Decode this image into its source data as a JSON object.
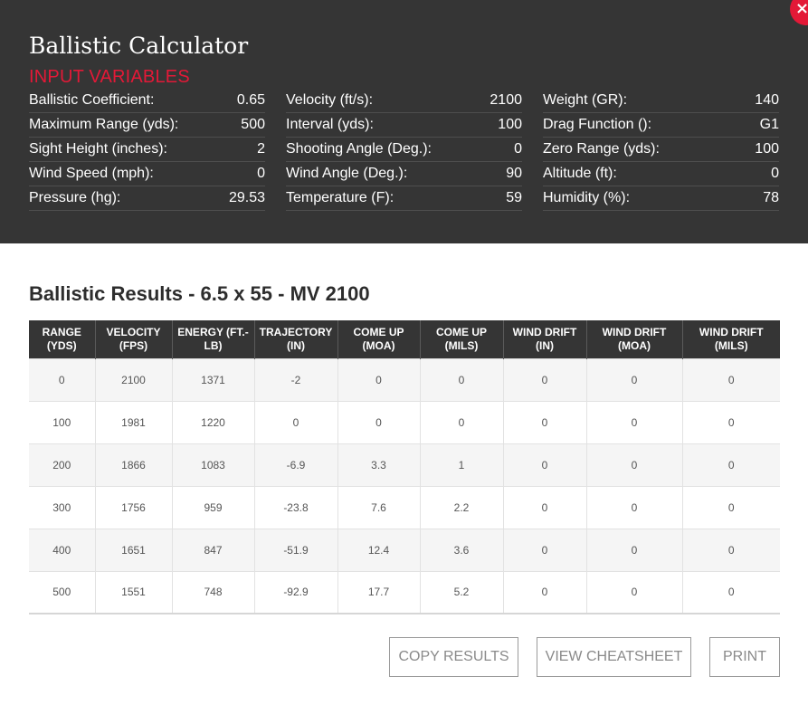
{
  "app": {
    "title": "Ballistic Calculator",
    "close_symbol": "×"
  },
  "inputs": {
    "section_label": "INPUT VARIABLES",
    "columns": [
      [
        {
          "label": "Ballistic Coefficient:",
          "value": "0.65"
        },
        {
          "label": "Maximum Range (yds):",
          "value": "500"
        },
        {
          "label": "Sight Height (inches):",
          "value": "2"
        },
        {
          "label": "Wind Speed (mph):",
          "value": "0"
        },
        {
          "label": "Pressure (hg):",
          "value": "29.53"
        }
      ],
      [
        {
          "label": "Velocity (ft/s):",
          "value": "2100"
        },
        {
          "label": "Interval (yds):",
          "value": "100"
        },
        {
          "label": "Shooting Angle (Deg.):",
          "value": "0"
        },
        {
          "label": "Wind Angle (Deg.):",
          "value": "90"
        },
        {
          "label": "Temperature (F):",
          "value": "59"
        }
      ],
      [
        {
          "label": "Weight (GR):",
          "value": "140"
        },
        {
          "label": "Drag Function ():",
          "value": "G1"
        },
        {
          "label": "Zero Range (yds):",
          "value": "100"
        },
        {
          "label": "Altitude (ft):",
          "value": "0"
        },
        {
          "label": "Humidity (%):",
          "value": "78"
        }
      ]
    ]
  },
  "results": {
    "title": "Ballistic Results - 6.5 x 55 - MV 2100",
    "headers": [
      [
        "RANGE",
        "(YDS)"
      ],
      [
        "VELOCITY",
        "(FPS)"
      ],
      [
        "ENERGY (FT.-",
        "LB)"
      ],
      [
        "TRAJECTORY",
        "(IN)"
      ],
      [
        "COME UP",
        "(MOA)"
      ],
      [
        "COME UP",
        "(MILS)"
      ],
      [
        "WIND DRIFT",
        "(IN)"
      ],
      [
        "WIND DRIFT",
        "(MOA)"
      ],
      [
        "WIND DRIFT",
        "(MILS)"
      ]
    ],
    "rows": [
      [
        "0",
        "2100",
        "1371",
        "-2",
        "0",
        "0",
        "0",
        "0",
        "0"
      ],
      [
        "100",
        "1981",
        "1220",
        "0",
        "0",
        "0",
        "0",
        "0",
        "0"
      ],
      [
        "200",
        "1866",
        "1083",
        "-6.9",
        "3.3",
        "1",
        "0",
        "0",
        "0"
      ],
      [
        "300",
        "1756",
        "959",
        "-23.8",
        "7.6",
        "2.2",
        "0",
        "0",
        "0"
      ],
      [
        "400",
        "1651",
        "847",
        "-51.9",
        "12.4",
        "3.6",
        "0",
        "0",
        "0"
      ],
      [
        "500",
        "1551",
        "748",
        "-92.9",
        "17.7",
        "5.2",
        "0",
        "0",
        "0"
      ]
    ]
  },
  "actions": {
    "copy_label": "COPY RESULTS",
    "cheatsheet_label": "VIEW CHEATSHEET",
    "print_label": "PRINT"
  },
  "colors": {
    "accent": "#e31937",
    "panel": "#353535"
  }
}
